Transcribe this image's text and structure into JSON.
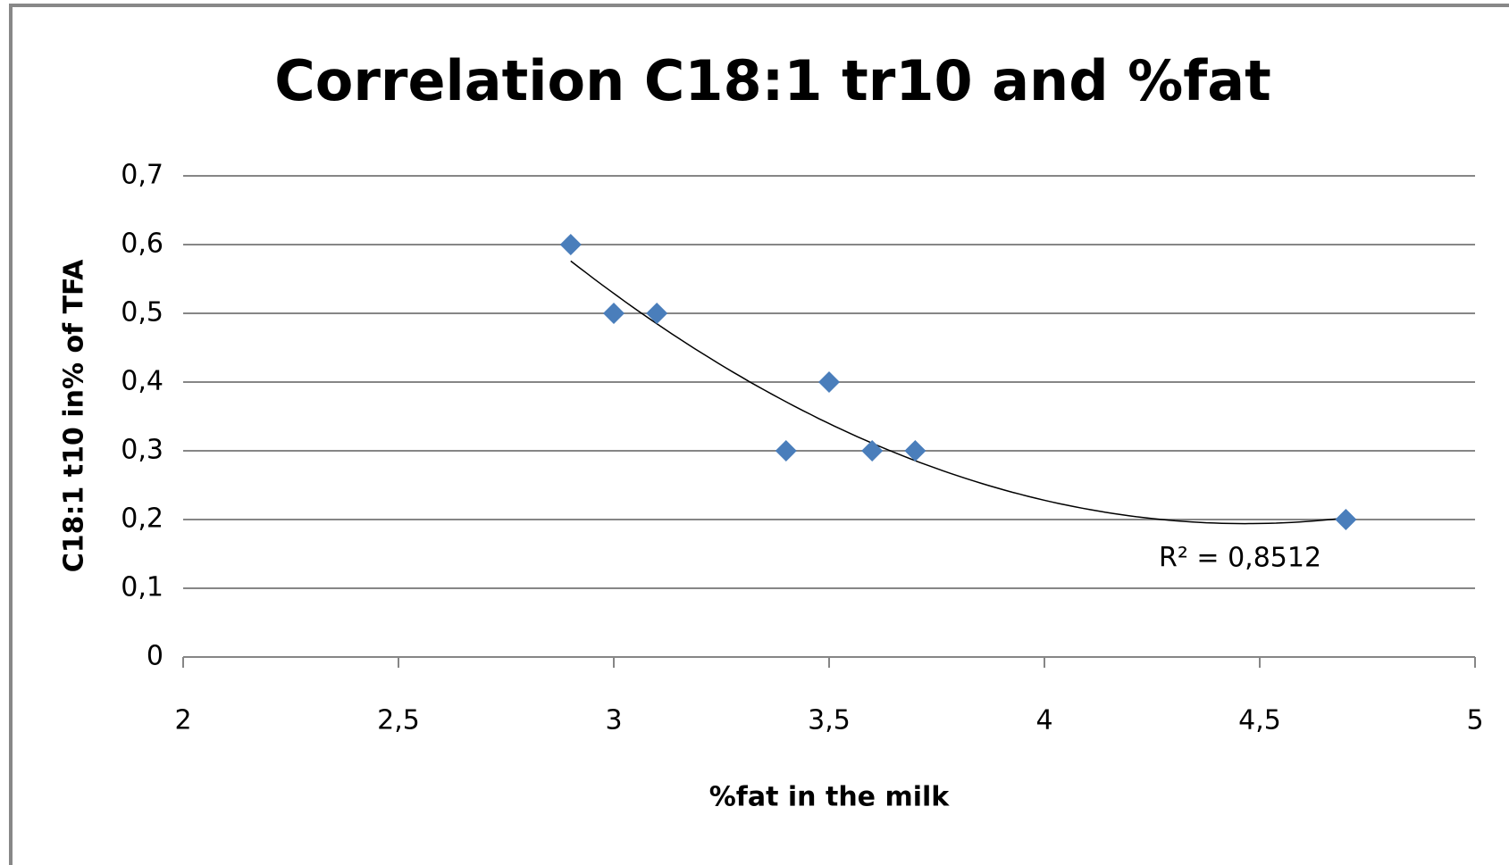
{
  "chart_data": {
    "type": "scatter",
    "title": "Correlation C18:1 tr10 and %fat",
    "xlabel": "%fat in the milk",
    "ylabel": "C18:1 t10 in% of TFA",
    "x": [
      2.9,
      3.0,
      3.1,
      3.4,
      3.5,
      3.6,
      3.7,
      4.7
    ],
    "values": [
      0.6,
      0.5,
      0.5,
      0.3,
      0.4,
      0.3,
      0.3,
      0.2
    ],
    "color": "#4a7ebb",
    "xlim": [
      2,
      5
    ],
    "xticks": [
      2,
      {
        "value": 2.5,
        "label": "2,5"
      },
      3,
      {
        "value": 3.5,
        "label": "3,5"
      },
      4,
      {
        "value": 4.5,
        "label": "4,5"
      },
      5
    ],
    "ylim": [
      0,
      0.7
    ],
    "yticks": [
      0,
      {
        "value": 0.1,
        "label": "0,1"
      },
      {
        "value": 0.2,
        "label": "0,2"
      },
      {
        "value": 0.3,
        "label": "0,3"
      },
      {
        "value": 0.4,
        "label": "0,4"
      },
      {
        "value": 0.5,
        "label": "0,5"
      },
      {
        "value": 0.6,
        "label": "0,6"
      },
      {
        "value": 0.7,
        "label": "0,7"
      }
    ],
    "grid": true,
    "trendline": {
      "order": 2,
      "label": "R² = 0,8512"
    }
  }
}
